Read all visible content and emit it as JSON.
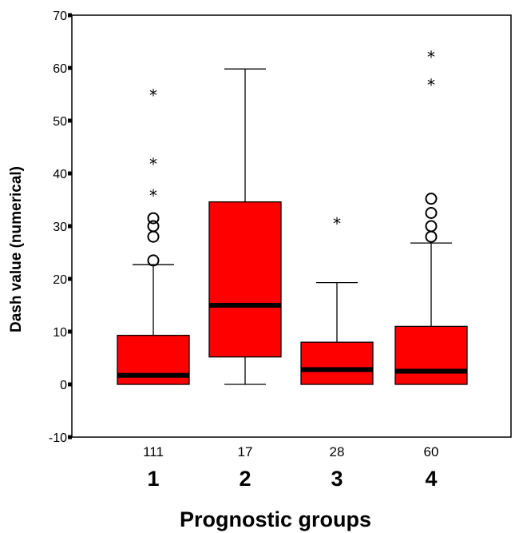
{
  "chart_data": {
    "type": "box",
    "xlabel": "Prognostic groups",
    "ylabel": "Dash value (numerical)",
    "ylim": [
      -10,
      70
    ],
    "yticks": [
      -10,
      0,
      10,
      20,
      30,
      40,
      50,
      60,
      70
    ],
    "grid": false,
    "colors": {
      "box_fill": "#ff0000",
      "box_stroke": "#000000",
      "median": "#000000"
    },
    "groups": [
      {
        "label": "1",
        "n": "111",
        "min": 0,
        "q1": 0,
        "median": 1.7,
        "q3": 9.3,
        "max": 22.7,
        "outliers_circle": [
          23.5,
          28,
          30,
          31.5
        ],
        "outliers_star": [
          36.5,
          42.5,
          55.5
        ]
      },
      {
        "label": "2",
        "n": "17",
        "min": 0,
        "q1": 5.2,
        "median": 15,
        "q3": 34.6,
        "max": 59.8,
        "outliers_circle": [],
        "outliers_star": []
      },
      {
        "label": "3",
        "n": "28",
        "min": 0,
        "q1": 0,
        "median": 2.8,
        "q3": 8,
        "max": 19.3,
        "outliers_circle": [],
        "outliers_star": [
          31.2
        ]
      },
      {
        "label": "4",
        "n": "60",
        "min": 0,
        "q1": 0,
        "median": 2.5,
        "q3": 11,
        "max": 26.8,
        "outliers_circle": [
          28,
          30,
          32.5,
          35.2
        ],
        "outliers_star": [
          57.5,
          62.8
        ]
      }
    ]
  }
}
